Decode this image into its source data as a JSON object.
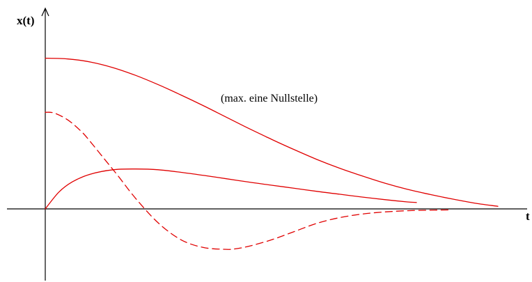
{
  "chart_data": {
    "type": "line",
    "title": "",
    "xlabel": "t",
    "ylabel": "x(t)",
    "annotation": "(max. eine Nullstelle)",
    "xlim": [
      0,
      10
    ],
    "ylim": [
      -1.6,
      7.8
    ],
    "grid": false,
    "ticks": false,
    "series": [
      {
        "style": "solid",
        "color": "#e00000",
        "x": [
          0,
          0.5,
          1.0,
          1.5,
          2.0,
          2.5,
          3.0,
          3.5,
          4.0,
          4.5,
          5.0,
          5.5,
          6.0,
          6.5,
          7.0,
          7.5,
          8.0,
          8.5,
          9.0,
          9.5,
          10.0
        ],
        "y": [
          5.85,
          5.82,
          5.7,
          5.48,
          5.18,
          4.82,
          4.42,
          4.0,
          3.56,
          3.12,
          2.7,
          2.3,
          1.92,
          1.58,
          1.28,
          1.0,
          0.76,
          0.56,
          0.38,
          0.22,
          0.1
        ]
      },
      {
        "style": "solid",
        "color": "#e00000",
        "x": [
          0,
          0.3,
          0.6,
          1.0,
          1.5,
          2.0,
          2.5,
          3.0,
          3.5,
          4.0,
          4.5,
          5.0,
          5.5,
          6.0,
          6.5,
          7.0,
          7.5,
          8.0,
          8.2
        ],
        "y": [
          0.0,
          0.65,
          1.05,
          1.35,
          1.52,
          1.55,
          1.52,
          1.42,
          1.3,
          1.17,
          1.04,
          0.92,
          0.8,
          0.68,
          0.57,
          0.46,
          0.36,
          0.27,
          0.25
        ]
      },
      {
        "style": "dashed",
        "color": "#e00000",
        "x": [
          0,
          0.2,
          0.5,
          0.8,
          1.0,
          1.3,
          1.6,
          2.0,
          2.5,
          3.0,
          3.5,
          4.0,
          4.2,
          4.5,
          5.0,
          5.5,
          6.0,
          6.5,
          7.0,
          7.5,
          8.0,
          8.5,
          8.9
        ],
        "y": [
          3.75,
          3.72,
          3.45,
          3.0,
          2.6,
          1.95,
          1.3,
          0.4,
          -0.55,
          -1.2,
          -1.5,
          -1.57,
          -1.55,
          -1.45,
          -1.2,
          -0.88,
          -0.56,
          -0.34,
          -0.2,
          -0.12,
          -0.07,
          -0.05,
          -0.04
        ]
      }
    ]
  }
}
